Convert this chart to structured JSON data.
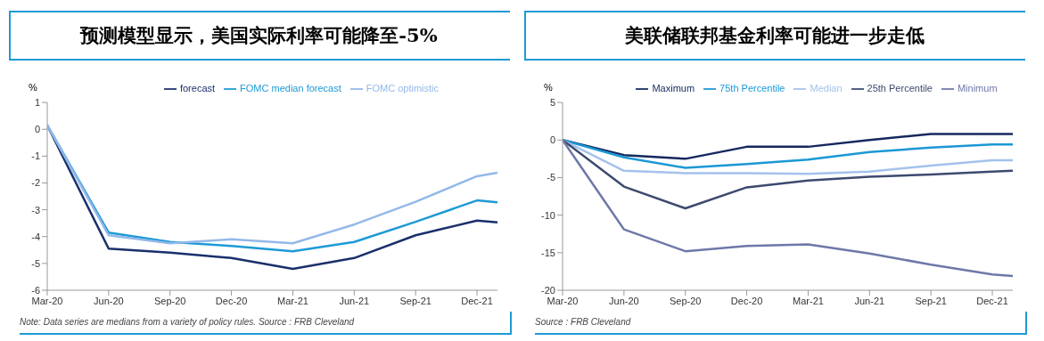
{
  "chart_data": [
    {
      "type": "line",
      "title": "预测模型显示，美国实际利率可能降至-5%",
      "ylabel": "%",
      "legend": "top",
      "x": [
        "2020-03",
        "2020-06",
        "2020-09",
        "2020-12",
        "2021-03",
        "2021-06",
        "2021-09",
        "2021-12",
        "2022-01"
      ],
      "xlim": [
        "2020-03",
        "2022-01"
      ],
      "xticks": [
        {
          "value": "2020-03",
          "label": "Mar-20"
        },
        {
          "value": "2020-06",
          "label": "Jun-20"
        },
        {
          "value": "2020-09",
          "label": "Sep-20"
        },
        {
          "value": "2020-12",
          "label": "Dec-20"
        },
        {
          "value": "2021-03",
          "label": "Mar-21"
        },
        {
          "value": "2021-06",
          "label": "Jun-21"
        },
        {
          "value": "2021-09",
          "label": "Sep-21"
        },
        {
          "value": "2021-12",
          "label": "Dec-21"
        }
      ],
      "ylim": [
        -6,
        1
      ],
      "yticks": [
        -6,
        -5,
        -4,
        -3,
        -2,
        -1,
        0,
        1
      ],
      "series": [
        {
          "name": "forecast",
          "color": "#1a2f6b",
          "values": [
            0.15,
            -4.45,
            -4.6,
            -4.8,
            -5.2,
            -4.8,
            -3.95,
            -3.4,
            -3.47
          ]
        },
        {
          "name": "FOMC median forecast",
          "color": "#1e9ad6",
          "values": [
            0.15,
            -3.85,
            -4.2,
            -4.35,
            -4.55,
            -4.2,
            -3.45,
            -2.65,
            -2.72
          ]
        },
        {
          "name": "FOMC optimistic",
          "color": "#94b8e8",
          "values": [
            0.15,
            -3.95,
            -4.25,
            -4.1,
            -4.25,
            -3.55,
            -2.7,
            -1.75,
            -1.62
          ]
        }
      ],
      "annotations": [
        "Note: Data series are medians from a variety of policy rules. Source : FRB Cleveland"
      ]
    },
    {
      "type": "line",
      "title": "美联储联邦基金利率可能进一步走低",
      "ylabel": "%",
      "legend": "top",
      "x": [
        "2020-03",
        "2020-06",
        "2020-09",
        "2020-12",
        "2021-03",
        "2021-06",
        "2021-09",
        "2021-12",
        "2022-01"
      ],
      "xlim": [
        "2020-03",
        "2022-01"
      ],
      "xticks": [
        {
          "value": "2020-03",
          "label": "Mar-20"
        },
        {
          "value": "2020-06",
          "label": "Jun-20"
        },
        {
          "value": "2020-09",
          "label": "Sep-20"
        },
        {
          "value": "2020-12",
          "label": "Dec-20"
        },
        {
          "value": "2021-03",
          "label": "Mar-21"
        },
        {
          "value": "2021-06",
          "label": "Jun-21"
        },
        {
          "value": "2021-09",
          "label": "Sep-21"
        },
        {
          "value": "2021-12",
          "label": "Dec-21"
        }
      ],
      "ylim": [
        -20,
        5
      ],
      "yticks": [
        -20,
        -15,
        -10,
        -5,
        0,
        5
      ],
      "series": [
        {
          "name": "Maximum",
          "color": "#14285e",
          "values": [
            0,
            -2.0,
            -2.5,
            -0.9,
            -0.9,
            0.0,
            0.8,
            0.8,
            0.8
          ]
        },
        {
          "name": "75th Percentile",
          "color": "#1b98d4",
          "values": [
            0,
            -2.3,
            -3.7,
            -3.2,
            -2.6,
            -1.6,
            -1.0,
            -0.6,
            -0.6
          ]
        },
        {
          "name": "Median",
          "color": "#a4c2ec",
          "values": [
            0,
            -4.1,
            -4.4,
            -4.4,
            -4.5,
            -4.2,
            -3.4,
            -2.7,
            -2.7
          ]
        },
        {
          "name": "25th Percentile",
          "color": "#3c4a6e",
          "values": [
            0,
            -6.2,
            -9.1,
            -6.3,
            -5.4,
            -4.9,
            -4.6,
            -4.2,
            -4.1
          ]
        },
        {
          "name": "Minimum",
          "color": "#6e78a8",
          "values": [
            0,
            -11.9,
            -14.8,
            -14.1,
            -13.9,
            -15.1,
            -16.6,
            -17.9,
            -18.1
          ]
        }
      ],
      "annotations": [
        "Source : FRB Cleveland"
      ]
    }
  ]
}
